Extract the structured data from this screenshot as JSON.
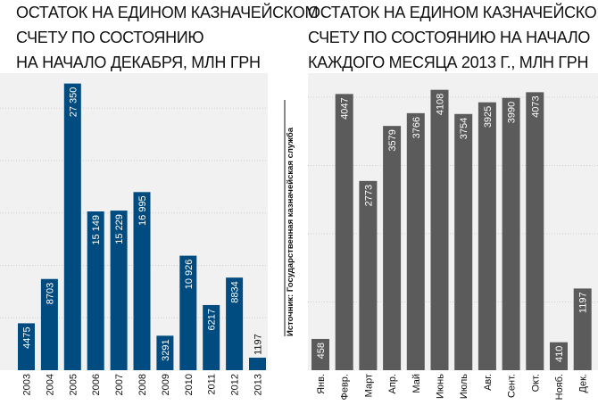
{
  "source_text": "Источник: Государственная казначейская служба",
  "colors": {
    "left_bar": "#004b7f",
    "right_bar": "#5b5b5b",
    "panel_background": "#f1f1f1",
    "grid": "#cfcfcf",
    "text": "#111111"
  },
  "chart_data": [
    {
      "type": "bar",
      "title_lines": [
        "ОСТАТОК НА ЕДИНОМ КАЗНАЧЕЙСКОМ",
        "СЧЕТУ ПО СОСТОЯНИЮ",
        "НА НАЧАЛО ДЕКАБРЯ, МЛН ГРН"
      ],
      "categories": [
        "2003",
        "2004",
        "2005",
        "2006",
        "2007",
        "2008",
        "2009",
        "2010",
        "2011",
        "2012",
        "2013"
      ],
      "values": [
        4475,
        8703,
        27350,
        15149,
        15229,
        16995,
        3291,
        10926,
        6217,
        8834,
        1197
      ],
      "value_labels": [
        "4475",
        "8703",
        "27 350",
        "15 149",
        "15 229",
        "16 995",
        "3291",
        "10 926",
        "6217",
        "8834",
        "1197"
      ],
      "ylim": [
        0,
        28000
      ],
      "grid": true,
      "grid_step": 5000,
      "bar_color": "#004b7f"
    },
    {
      "type": "bar",
      "title_lines": [
        "ОСТАТОК НА ЕДИНОМ КАЗНАЧЕЙСКОМ",
        "СЧЕТУ ПО СОСТОЯНИЮ НА НАЧАЛО",
        "КАЖДОГО МЕСЯЦА 2013 Г., МЛН ГРН"
      ],
      "categories": [
        "Янв.",
        "Февр.",
        "Март",
        "Апр.",
        "Май",
        "Июнь",
        "Июль",
        "Авг.",
        "Сент.",
        "Окт.",
        "Нояб.",
        "Дек."
      ],
      "values": [
        458,
        4047,
        2773,
        3579,
        3766,
        4108,
        3754,
        3925,
        3990,
        4073,
        410,
        1197
      ],
      "value_labels": [
        "458",
        "4047",
        "2773",
        "3579",
        "3766",
        "4108",
        "3754",
        "3925",
        "3990",
        "4073",
        "410",
        "1197"
      ],
      "ylim": [
        0,
        4300
      ],
      "grid": true,
      "grid_step": 1000,
      "bar_color": "#5b5b5b"
    }
  ]
}
